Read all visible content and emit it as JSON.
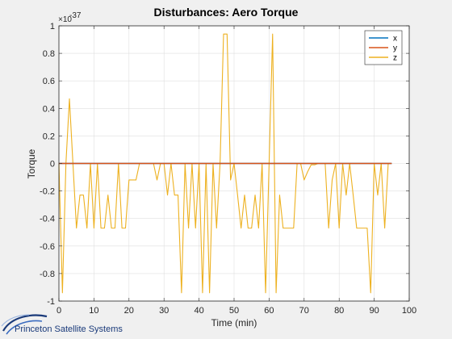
{
  "window": {
    "background": "#f0f0f0"
  },
  "logo": {
    "text": "Princeton Satellite Systems",
    "icon": "swoosh-logo-icon",
    "color": "#1a3a7a"
  },
  "chart_data": {
    "type": "line",
    "title": "Disturbances: Aero Torque",
    "xlabel": "Time (min)",
    "ylabel": "Torque",
    "y_exponent_label": "×10",
    "y_exponent_power": "-37",
    "xlim": [
      0,
      100
    ],
    "ylim": [
      -1,
      1
    ],
    "xticks": [
      0,
      10,
      20,
      30,
      40,
      50,
      60,
      70,
      80,
      90,
      100
    ],
    "yticks": [
      -1,
      -0.8,
      -0.6,
      -0.4,
      -0.2,
      0,
      0.2,
      0.4,
      0.6,
      0.8,
      1
    ],
    "xtick_labels": [
      "0",
      "10",
      "20",
      "30",
      "40",
      "50",
      "60",
      "70",
      "80",
      "90",
      "100"
    ],
    "ytick_labels": [
      "-1",
      "-0.8",
      "-0.6",
      "-0.4",
      "-0.2",
      "0",
      "0.2",
      "0.4",
      "0.6",
      "0.8",
      "1"
    ],
    "grid": true,
    "legend_position": "top-right",
    "series": [
      {
        "name": "x",
        "color": "#0072bd",
        "x": [
          0,
          95
        ],
        "y": [
          0,
          0
        ]
      },
      {
        "name": "y",
        "color": "#d95319",
        "x": [
          0,
          95
        ],
        "y": [
          0,
          0
        ]
      },
      {
        "name": "z",
        "color": "#edb120",
        "x": [
          0,
          1,
          2,
          3,
          4,
          5,
          6,
          7,
          8,
          9,
          10,
          11,
          12,
          13,
          14,
          15,
          16,
          17,
          18,
          19,
          20,
          21,
          22,
          23,
          24,
          25,
          26,
          27,
          28,
          29,
          30,
          31,
          32,
          33,
          34,
          35,
          36,
          37,
          38,
          39,
          40,
          41,
          42,
          43,
          44,
          45,
          46,
          47,
          48,
          49,
          50,
          51,
          52,
          53,
          54,
          55,
          56,
          57,
          58,
          59,
          60,
          61,
          62,
          63,
          64,
          65,
          66,
          67,
          68,
          69,
          70,
          71,
          72,
          73,
          74,
          75,
          76,
          77,
          78,
          79,
          80,
          81,
          82,
          83,
          84,
          85,
          86,
          87,
          88,
          89,
          90,
          91,
          92,
          93,
          94,
          95
        ],
        "y": [
          0,
          -0.94,
          0,
          0.47,
          0,
          -0.47,
          -0.23,
          -0.23,
          -0.47,
          0,
          -0.47,
          0,
          -0.47,
          -0.47,
          -0.23,
          -0.47,
          -0.47,
          0,
          -0.47,
          -0.47,
          -0.12,
          -0.12,
          -0.12,
          0,
          0,
          0,
          0,
          0,
          -0.12,
          0,
          0,
          -0.23,
          0,
          -0.23,
          -0.23,
          -0.94,
          0,
          -0.47,
          0,
          -0.47,
          0,
          -0.94,
          0,
          -0.94,
          0,
          -0.47,
          0,
          0.94,
          0.94,
          -0.12,
          0,
          -0.23,
          -0.47,
          -0.23,
          -0.47,
          -0.47,
          -0.23,
          -0.47,
          0,
          -0.94,
          0,
          0.94,
          -0.94,
          -0.23,
          -0.47,
          -0.47,
          -0.47,
          -0.47,
          0,
          0,
          -0.12,
          -0.06,
          -0.01,
          -0.01,
          0,
          0,
          0,
          -0.47,
          -0.12,
          0,
          -0.47,
          0,
          -0.23,
          0,
          -0.23,
          -0.47,
          -0.47,
          -0.47,
          -0.47,
          -0.94,
          0,
          -0.23,
          0,
          -0.47,
          0,
          0
        ]
      }
    ]
  }
}
